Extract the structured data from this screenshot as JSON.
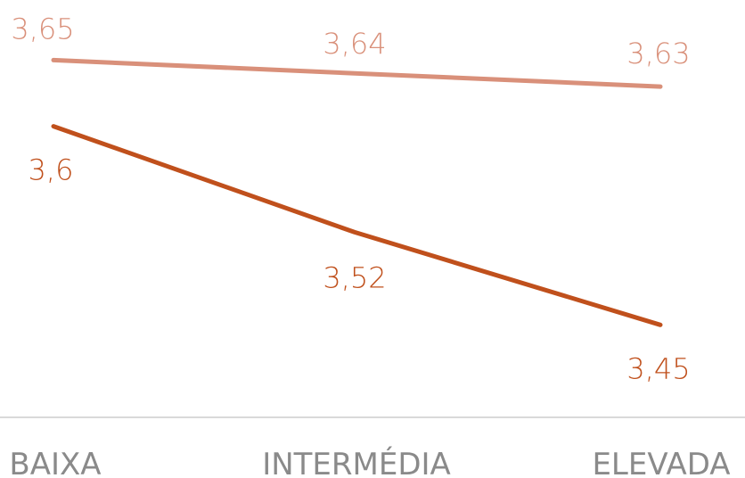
{
  "chart_data": {
    "type": "line",
    "categories": [
      "BAIXA",
      "INTERMÉDIA",
      "ELEVADA"
    ],
    "series": [
      {
        "values": [
          3.65,
          3.64,
          3.63
        ],
        "labels": [
          "3,65",
          "3,64",
          "3,63"
        ],
        "color": "#d9907a"
      },
      {
        "values": [
          3.6,
          3.52,
          3.45
        ],
        "labels": [
          "3,6",
          "3,52",
          "3,45"
        ],
        "color": "#c0501c"
      }
    ],
    "title": "",
    "xlabel": "",
    "ylabel": "",
    "ylim": [
      3.395,
      3.69
    ],
    "grid": false,
    "legend": "none",
    "baseline_color": "#d9d9d9",
    "category_label_color": "#8a8a8a"
  }
}
